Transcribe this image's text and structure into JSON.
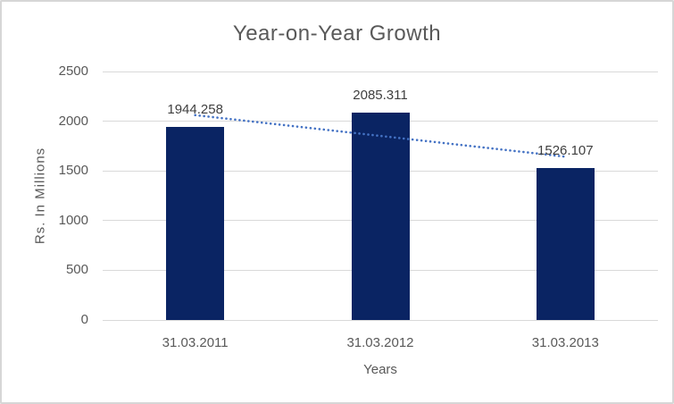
{
  "frame": {
    "background": "#ffffff",
    "border_color": "#d6d6d6"
  },
  "chart_data": {
    "type": "bar",
    "title": "Year-on-Year Growth",
    "xlabel": "Years",
    "ylabel": "Rs. In Millions",
    "categories": [
      "31.03.2011",
      "31.03.2012",
      "31.03.2013"
    ],
    "values": [
      1944.258,
      2085.311,
      1526.107
    ],
    "data_labels": [
      "1944.258",
      "2085.311",
      "1526.107"
    ],
    "ylim": [
      0,
      2500
    ],
    "yticks": [
      0,
      500,
      1000,
      1500,
      2000,
      2500
    ],
    "grid": true,
    "legend": "none",
    "bar_color": "#0a2463",
    "gridline_color": "#d9d9d9",
    "trendline": {
      "type": "linear",
      "style": "dotted",
      "color": "#4472c4",
      "start_value": 2061,
      "end_value": 1643
    },
    "text_colors": {
      "title": "#595959",
      "axis": "#595959",
      "data_label": "#3f3f3f"
    }
  }
}
